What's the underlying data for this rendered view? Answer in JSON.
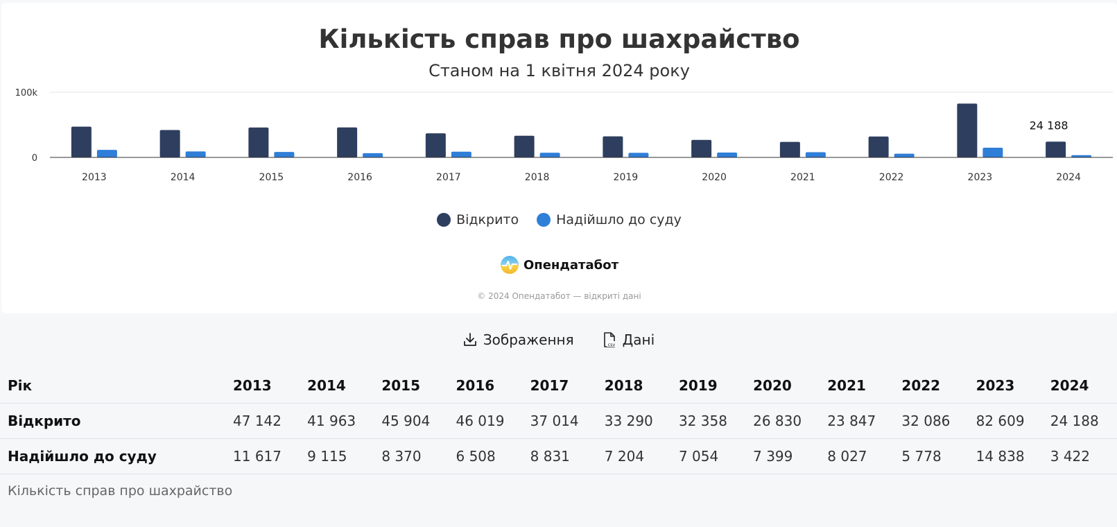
{
  "chart_data": {
    "type": "bar",
    "title": "Кількість справ про шахрайство",
    "subtitle": "Станом на 1 квітня 2024 року",
    "categories": [
      "2013",
      "2014",
      "2015",
      "2016",
      "2017",
      "2018",
      "2019",
      "2020",
      "2021",
      "2022",
      "2023",
      "2024"
    ],
    "series": [
      {
        "name": "Відкрито",
        "color": "#2e3e5e",
        "values": [
          47142,
          41963,
          45904,
          46019,
          37014,
          33290,
          32358,
          26830,
          23847,
          32086,
          82609,
          24188
        ]
      },
      {
        "name": "Надійшло до суду",
        "color": "#2f7ed8",
        "values": [
          11617,
          9115,
          8370,
          6508,
          8831,
          7204,
          7054,
          7399,
          8027,
          5778,
          14838,
          3422
        ]
      }
    ],
    "ylim": [
      0,
      100000
    ],
    "yticks": [
      "0",
      "100k"
    ],
    "grid": true,
    "legend": "bottom-center",
    "data_label": {
      "series": "Відкрито",
      "category": "2024",
      "text": "24 188"
    }
  },
  "brand": {
    "name": "Опендатабот",
    "copyright": "© 2024 Опендатабот — відкриті дані"
  },
  "export": {
    "image_label": "Зображення",
    "data_label": "Дані"
  },
  "table": {
    "header": "Рік",
    "years": [
      "2013",
      "2014",
      "2015",
      "2016",
      "2017",
      "2018",
      "2019",
      "2020",
      "2021",
      "2022",
      "2023",
      "2024"
    ],
    "rows": [
      {
        "label": "Відкрито",
        "values": [
          "47 142",
          "41 963",
          "45 904",
          "46 019",
          "37 014",
          "33 290",
          "32 358",
          "26 830",
          "23 847",
          "32 086",
          "82 609",
          "24 188"
        ]
      },
      {
        "label": "Надійшло до суду",
        "values": [
          "11 617",
          "9 115",
          "8 370",
          "6 508",
          "8 831",
          "7 204",
          "7 054",
          "7 399",
          "8 027",
          "5 778",
          "14 838",
          "3 422"
        ]
      }
    ],
    "caption": "Кількість справ про шахрайство"
  }
}
